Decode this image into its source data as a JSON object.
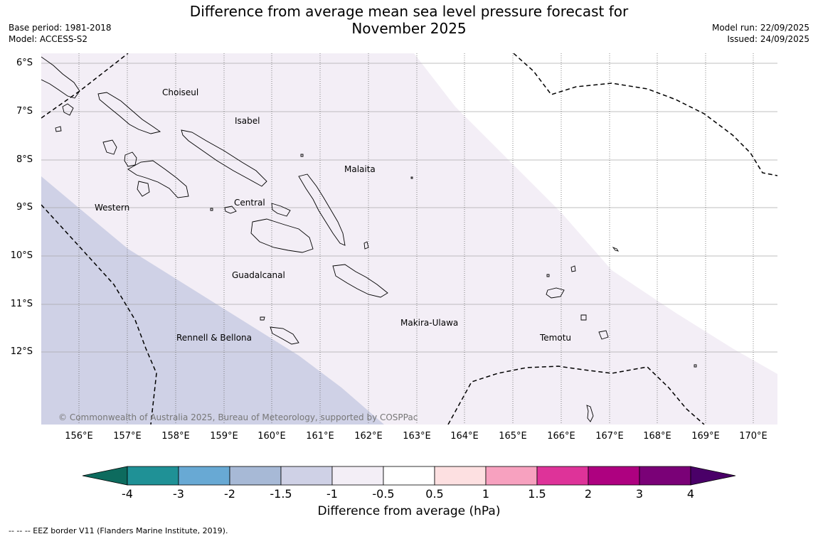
{
  "title_line1": "Difference from average mean sea level pressure forecast for",
  "title_line2": "November 2025",
  "base_period": "Base period: 1981-2018",
  "model": "Model: ACCESS-S2",
  "model_run": "Model run: 22/09/2025",
  "issued": "Issued: 24/09/2025",
  "lat_labels": [
    "6°S",
    "7°S",
    "8°S",
    "9°S",
    "10°S",
    "11°S",
    "12°S"
  ],
  "lon_labels": [
    "156°E",
    "157°E",
    "158°E",
    "159°E",
    "160°E",
    "161°E",
    "162°E",
    "163°E",
    "164°E",
    "165°E",
    "166°E",
    "167°E",
    "168°E",
    "169°E",
    "170°E"
  ],
  "provinces": {
    "choiseul": "Choiseul",
    "isabel": "Isabel",
    "malaita": "Malaita",
    "western": "Western",
    "central": "Central",
    "guadalcanal": "Guadalcanal",
    "makira": "Makira-Ulawa",
    "rennell": "Rennell & Bellona",
    "temotu": "Temotu"
  },
  "copyright": "© Commonwealth of Australia 2025, Bureau of Meteorology, supported by COSPPac",
  "colorbar": {
    "ticks": [
      "-4",
      "-3",
      "-2",
      "-1.5",
      "-1",
      "-0.5",
      "0.5",
      "1",
      "1.5",
      "2",
      "3",
      "4"
    ],
    "colors": {
      "below_min": "#0d6b5e",
      "-4_-3": "#1f9196",
      "-3_-2": "#68a9d4",
      "-2_-1.5": "#a7b9d6",
      "-1.5_-1": "#cfd1e6",
      "-1_-0.5": "#f3eef6",
      "-0.5_0.5": "#ffffff",
      "0.5_1": "#fde0e1",
      "1_1.5": "#f7a1bf",
      "1.5_2": "#de3399",
      "2_3": "#ae0180",
      "3_4": "#7a0177",
      "above_max": "#4a0068"
    },
    "label": "Difference from average (hPa)"
  },
  "footnote": "--  --  -- EEZ border V11 (Flanders Marine Institute, 2019)."
}
